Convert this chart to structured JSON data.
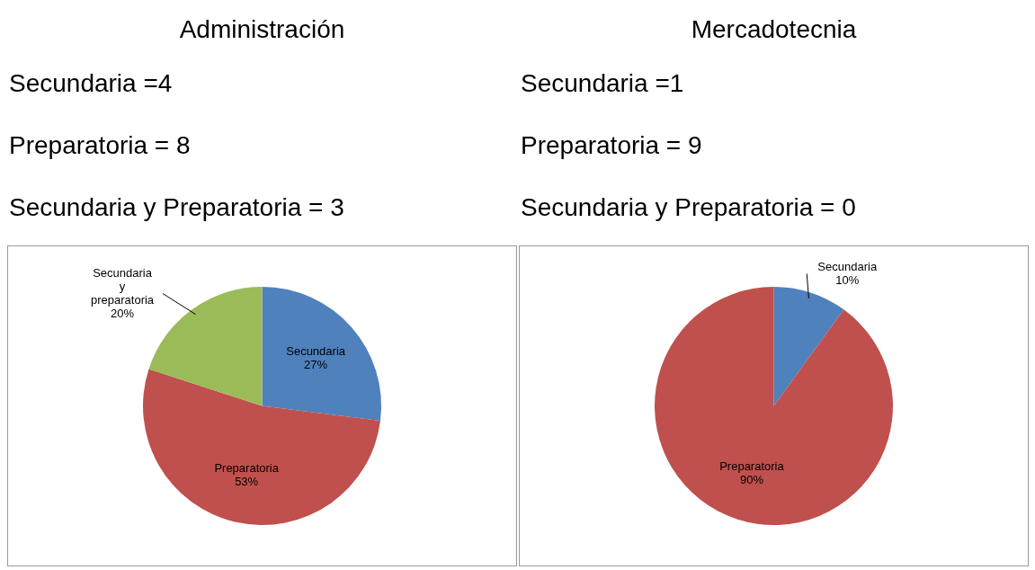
{
  "chart_data": [
    {
      "type": "pie",
      "title": "Administración",
      "annotations": [
        "Secundaria =4",
        "Preparatoria = 8",
        "Secundaria y Preparatoria = 3"
      ],
      "categories": [
        "Secundaria",
        "Preparatoria",
        "Secundaria y preparatoria"
      ],
      "values": [
        27,
        53,
        20
      ],
      "colors": [
        "#4f81bd",
        "#c0504d",
        "#9bbb59"
      ],
      "value_labels": [
        "27%",
        "53%",
        "20%"
      ]
    },
    {
      "type": "pie",
      "title": "Mercadotecnia",
      "annotations": [
        "Secundaria =1",
        "Preparatoria = 9",
        "Secundaria y Preparatoria = 0"
      ],
      "categories": [
        "Secundaria",
        "Preparatoria"
      ],
      "values": [
        10,
        90
      ],
      "colors": [
        "#4f81bd",
        "#c0504d"
      ],
      "value_labels": [
        "10%",
        "90%"
      ]
    }
  ]
}
